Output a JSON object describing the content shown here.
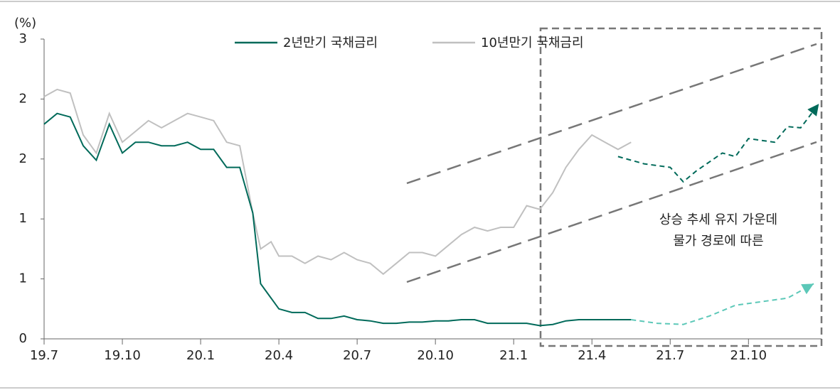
{
  "chart_data": {
    "type": "line",
    "unit_label": "(%)",
    "xlim": [
      0,
      29.8
    ],
    "xticks": [
      {
        "value": 0,
        "label": "19.7"
      },
      {
        "value": 3,
        "label": "19.10"
      },
      {
        "value": 6,
        "label": "20.1"
      },
      {
        "value": 9,
        "label": "20.4"
      },
      {
        "value": 12,
        "label": "20.7"
      },
      {
        "value": 15,
        "label": "20.10"
      },
      {
        "value": 18,
        "label": "21.1"
      },
      {
        "value": 21,
        "label": "21.4"
      },
      {
        "value": 24,
        "label": "21.7"
      },
      {
        "value": 27,
        "label": "21.10"
      }
    ],
    "ylim": [
      0,
      2.5
    ],
    "yticks": [
      0,
      {
        "value": 0.5,
        "label": "1"
      },
      1,
      {
        "value": 1.5,
        "label": "2"
      },
      2,
      {
        "value": 2.5,
        "label": "3"
      }
    ],
    "x": [
      0,
      0.5,
      1,
      1.5,
      2,
      2.5,
      3,
      3.5,
      4,
      4.5,
      5,
      5.5,
      6,
      6.5,
      7,
      7.5,
      8,
      8.3,
      8.7,
      9,
      9.5,
      10,
      10.5,
      11,
      11.5,
      12,
      12.5,
      13,
      13.5,
      14,
      14.5,
      15,
      15.5,
      16,
      16.5,
      17,
      17.5,
      18,
      18.5,
      19,
      19.5,
      20,
      20.5,
      21,
      21.5,
      22,
      22.5
    ],
    "series": [
      {
        "name": "2년만기 국채금리",
        "color": "#006a5a",
        "values": [
          1.79,
          1.88,
          1.85,
          1.61,
          1.49,
          1.79,
          1.55,
          1.64,
          1.64,
          1.61,
          1.61,
          1.64,
          1.58,
          1.58,
          1.43,
          1.43,
          1.05,
          0.46,
          0.34,
          0.25,
          0.22,
          0.22,
          0.17,
          0.17,
          0.19,
          0.16,
          0.15,
          0.13,
          0.13,
          0.14,
          0.14,
          0.15,
          0.15,
          0.16,
          0.16,
          0.13,
          0.13,
          0.13,
          0.13,
          0.11,
          0.12,
          0.15,
          0.16,
          0.16,
          0.16,
          0.16,
          0.16
        ]
      },
      {
        "name": "10년만기 국채금리",
        "color": "#c0c0c0",
        "values": [
          2.02,
          2.08,
          2.05,
          1.7,
          1.55,
          1.88,
          1.64,
          1.73,
          1.82,
          1.76,
          1.82,
          1.88,
          1.85,
          1.82,
          1.64,
          1.61,
          1.05,
          0.75,
          0.81,
          0.69,
          0.69,
          0.63,
          0.69,
          0.66,
          0.72,
          0.66,
          0.63,
          0.54,
          0.63,
          0.72,
          0.72,
          0.69,
          0.78,
          0.87,
          0.93,
          0.9,
          0.93,
          0.93,
          1.11,
          1.08,
          1.22,
          1.43,
          1.58,
          1.7,
          1.64,
          1.58,
          1.64
        ]
      }
    ],
    "projections": [
      {
        "color": "#006a5a",
        "x": [
          22,
          23,
          24,
          24.5,
          25,
          26,
          26.5,
          27,
          28,
          28.5,
          29,
          29.7
        ],
        "values": [
          1.52,
          1.46,
          1.43,
          1.31,
          1.4,
          1.55,
          1.52,
          1.67,
          1.64,
          1.77,
          1.76,
          1.96
        ]
      },
      {
        "color": "#5cc8b8",
        "x": [
          22.5,
          23.5,
          24.5,
          25.5,
          26.5,
          27.5,
          28.5,
          29.5
        ],
        "values": [
          0.16,
          0.13,
          0.12,
          0.19,
          0.28,
          0.31,
          0.34,
          0.46
        ]
      }
    ],
    "annotation": [
      "상승 추세 유지 가운데",
      "물가 경로에 따른"
    ]
  }
}
